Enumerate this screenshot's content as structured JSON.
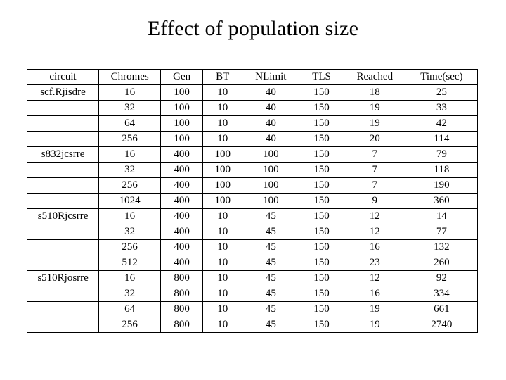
{
  "title": "Effect of population size",
  "table": {
    "columns": [
      "circuit",
      "Chromes",
      "Gen",
      "BT",
      "NLimit",
      "TLS",
      "Reached",
      "Time(sec)"
    ],
    "col_widths_pct": [
      14.5,
      12.5,
      8.5,
      8,
      11.5,
      9,
      12.5,
      14.5
    ],
    "rows": [
      [
        "scf.Rjisdre",
        "16",
        "100",
        "10",
        "40",
        "150",
        "18",
        "25"
      ],
      [
        "",
        "32",
        "100",
        "10",
        "40",
        "150",
        "19",
        "33"
      ],
      [
        "",
        "64",
        "100",
        "10",
        "40",
        "150",
        "19",
        "42"
      ],
      [
        "",
        "256",
        "100",
        "10",
        "40",
        "150",
        "20",
        "114"
      ],
      [
        "s832jcsrre",
        "16",
        "400",
        "100",
        "100",
        "150",
        "7",
        "79"
      ],
      [
        "",
        "32",
        "400",
        "100",
        "100",
        "150",
        "7",
        "118"
      ],
      [
        "",
        "256",
        "400",
        "100",
        "100",
        "150",
        "7",
        "190"
      ],
      [
        "",
        "1024",
        "400",
        "100",
        "100",
        "150",
        "9",
        "360"
      ],
      [
        "s510Rjcsrre",
        "16",
        "400",
        "10",
        "45",
        "150",
        "12",
        "14"
      ],
      [
        "",
        "32",
        "400",
        "10",
        "45",
        "150",
        "12",
        "77"
      ],
      [
        "",
        "256",
        "400",
        "10",
        "45",
        "150",
        "16",
        "132"
      ],
      [
        "",
        "512",
        "400",
        "10",
        "45",
        "150",
        "23",
        "260"
      ],
      [
        "s510Rjosrre",
        "16",
        "800",
        "10",
        "45",
        "150",
        "12",
        "92"
      ],
      [
        "",
        "32",
        "800",
        "10",
        "45",
        "150",
        "16",
        "334"
      ],
      [
        "",
        "64",
        "800",
        "10",
        "45",
        "150",
        "19",
        "661"
      ],
      [
        "",
        "256",
        "800",
        "10",
        "45",
        "150",
        "19",
        "2740"
      ]
    ],
    "border_color": "#000000",
    "background_color": "#ffffff",
    "font_size_pt": 11,
    "font_family": "Times New Roman"
  }
}
